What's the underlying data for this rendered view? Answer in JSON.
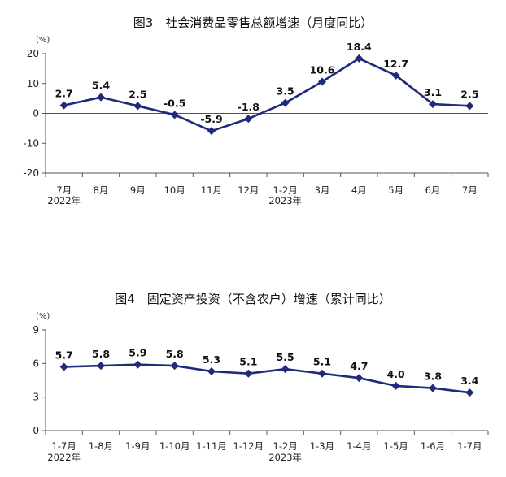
{
  "chart_data": [
    {
      "type": "line",
      "title": "图3　社会消费品零售总额增速（月度同比）",
      "unit": "(%)",
      "ylim": [
        -20,
        20
      ],
      "yticks": [
        "20",
        "10",
        "0",
        "-10",
        "-20"
      ],
      "yticks_values": [
        20,
        10,
        0,
        -10,
        -20
      ],
      "categories": [
        "7月",
        "8月",
        "9月",
        "10月",
        "11月",
        "12月",
        "1-2月",
        "3月",
        "4月",
        "5月",
        "6月",
        "7月"
      ],
      "year_labels": [
        {
          "text": "2022年",
          "category_index": 0
        },
        {
          "text": "2023年",
          "category_index": 6
        }
      ],
      "series": [
        {
          "values": [
            2.7,
            5.4,
            2.5,
            -0.5,
            -5.9,
            -1.8,
            3.5,
            10.6,
            18.4,
            12.7,
            3.1,
            2.5
          ],
          "labels": [
            "2.7",
            "5.4",
            "2.5",
            "-0.5",
            "-5.9",
            "-1.8",
            "3.5",
            "10.6",
            "18.4",
            "12.7",
            "3.1",
            "2.5"
          ],
          "color": "#1f2a7a"
        }
      ],
      "grid": false
    },
    {
      "type": "line",
      "title": "图4　固定资产投资（不含农户）增速（累计同比）",
      "unit": "(%)",
      "ylim": [
        0,
        9
      ],
      "yticks": [
        "9",
        "6",
        "3",
        "0"
      ],
      "yticks_values": [
        9,
        6,
        3,
        0
      ],
      "categories": [
        "1-7月",
        "1-8月",
        "1-9月",
        "1-10月",
        "1-11月",
        "1-12月",
        "1-2月",
        "1-3月",
        "1-4月",
        "1-5月",
        "1-6月",
        "1-7月"
      ],
      "year_labels": [
        {
          "text": "2022年",
          "category_index": 0
        },
        {
          "text": "2023年",
          "category_index": 6
        }
      ],
      "series": [
        {
          "values": [
            5.7,
            5.8,
            5.9,
            5.8,
            5.3,
            5.1,
            5.5,
            5.1,
            4.7,
            4.0,
            3.8,
            3.4
          ],
          "labels": [
            "5.7",
            "5.8",
            "5.9",
            "5.8",
            "5.3",
            "5.1",
            "5.5",
            "5.1",
            "4.7",
            "4.0",
            "3.8",
            "3.4"
          ],
          "color": "#1f2a7a"
        }
      ],
      "grid": false
    }
  ]
}
